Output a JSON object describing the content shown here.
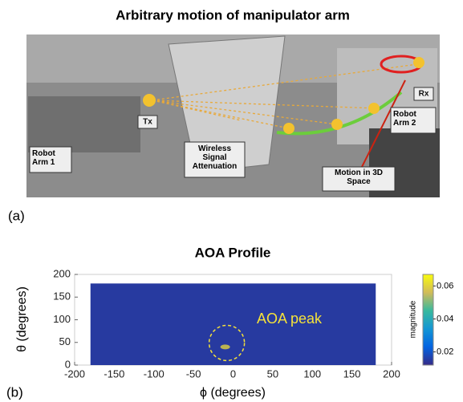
{
  "figure": {
    "panel_a": {
      "title": "Arbitrary motion of manipulator arm",
      "label": "(a)",
      "tags": {
        "tx": "Tx",
        "rx": "Rx",
        "arm1": "Robot Arm 1",
        "attenuation": "Wireless Signal Attenuation",
        "arm2": "Robot Arm 2",
        "motion": "Motion in 3D Space"
      }
    }
  },
  "chart_data": {
    "type": "heatmap",
    "title": "AOA Profile",
    "panel_label": "(b)",
    "x_label": "ϕ (degrees)",
    "y_label": "θ (degrees)",
    "xlim": [
      -200,
      200
    ],
    "xticks": [
      -200,
      -150,
      -100,
      -50,
      0,
      50,
      100,
      150,
      200
    ],
    "ylim": [
      0,
      200
    ],
    "yticks": [
      0,
      50,
      100,
      150,
      200
    ],
    "data_xlim": [
      -180,
      180
    ],
    "data_ylim": [
      0,
      180
    ],
    "background_value": 0.015,
    "peak": {
      "x": -10,
      "y": 40,
      "value": 0.06
    },
    "annotation": "AOA peak",
    "annotation_color": "#f5e23a",
    "colorbar": {
      "label": "magnitude",
      "clim": [
        0.012,
        0.067
      ],
      "ticks": [
        0.02,
        0.04,
        0.06
      ]
    }
  }
}
